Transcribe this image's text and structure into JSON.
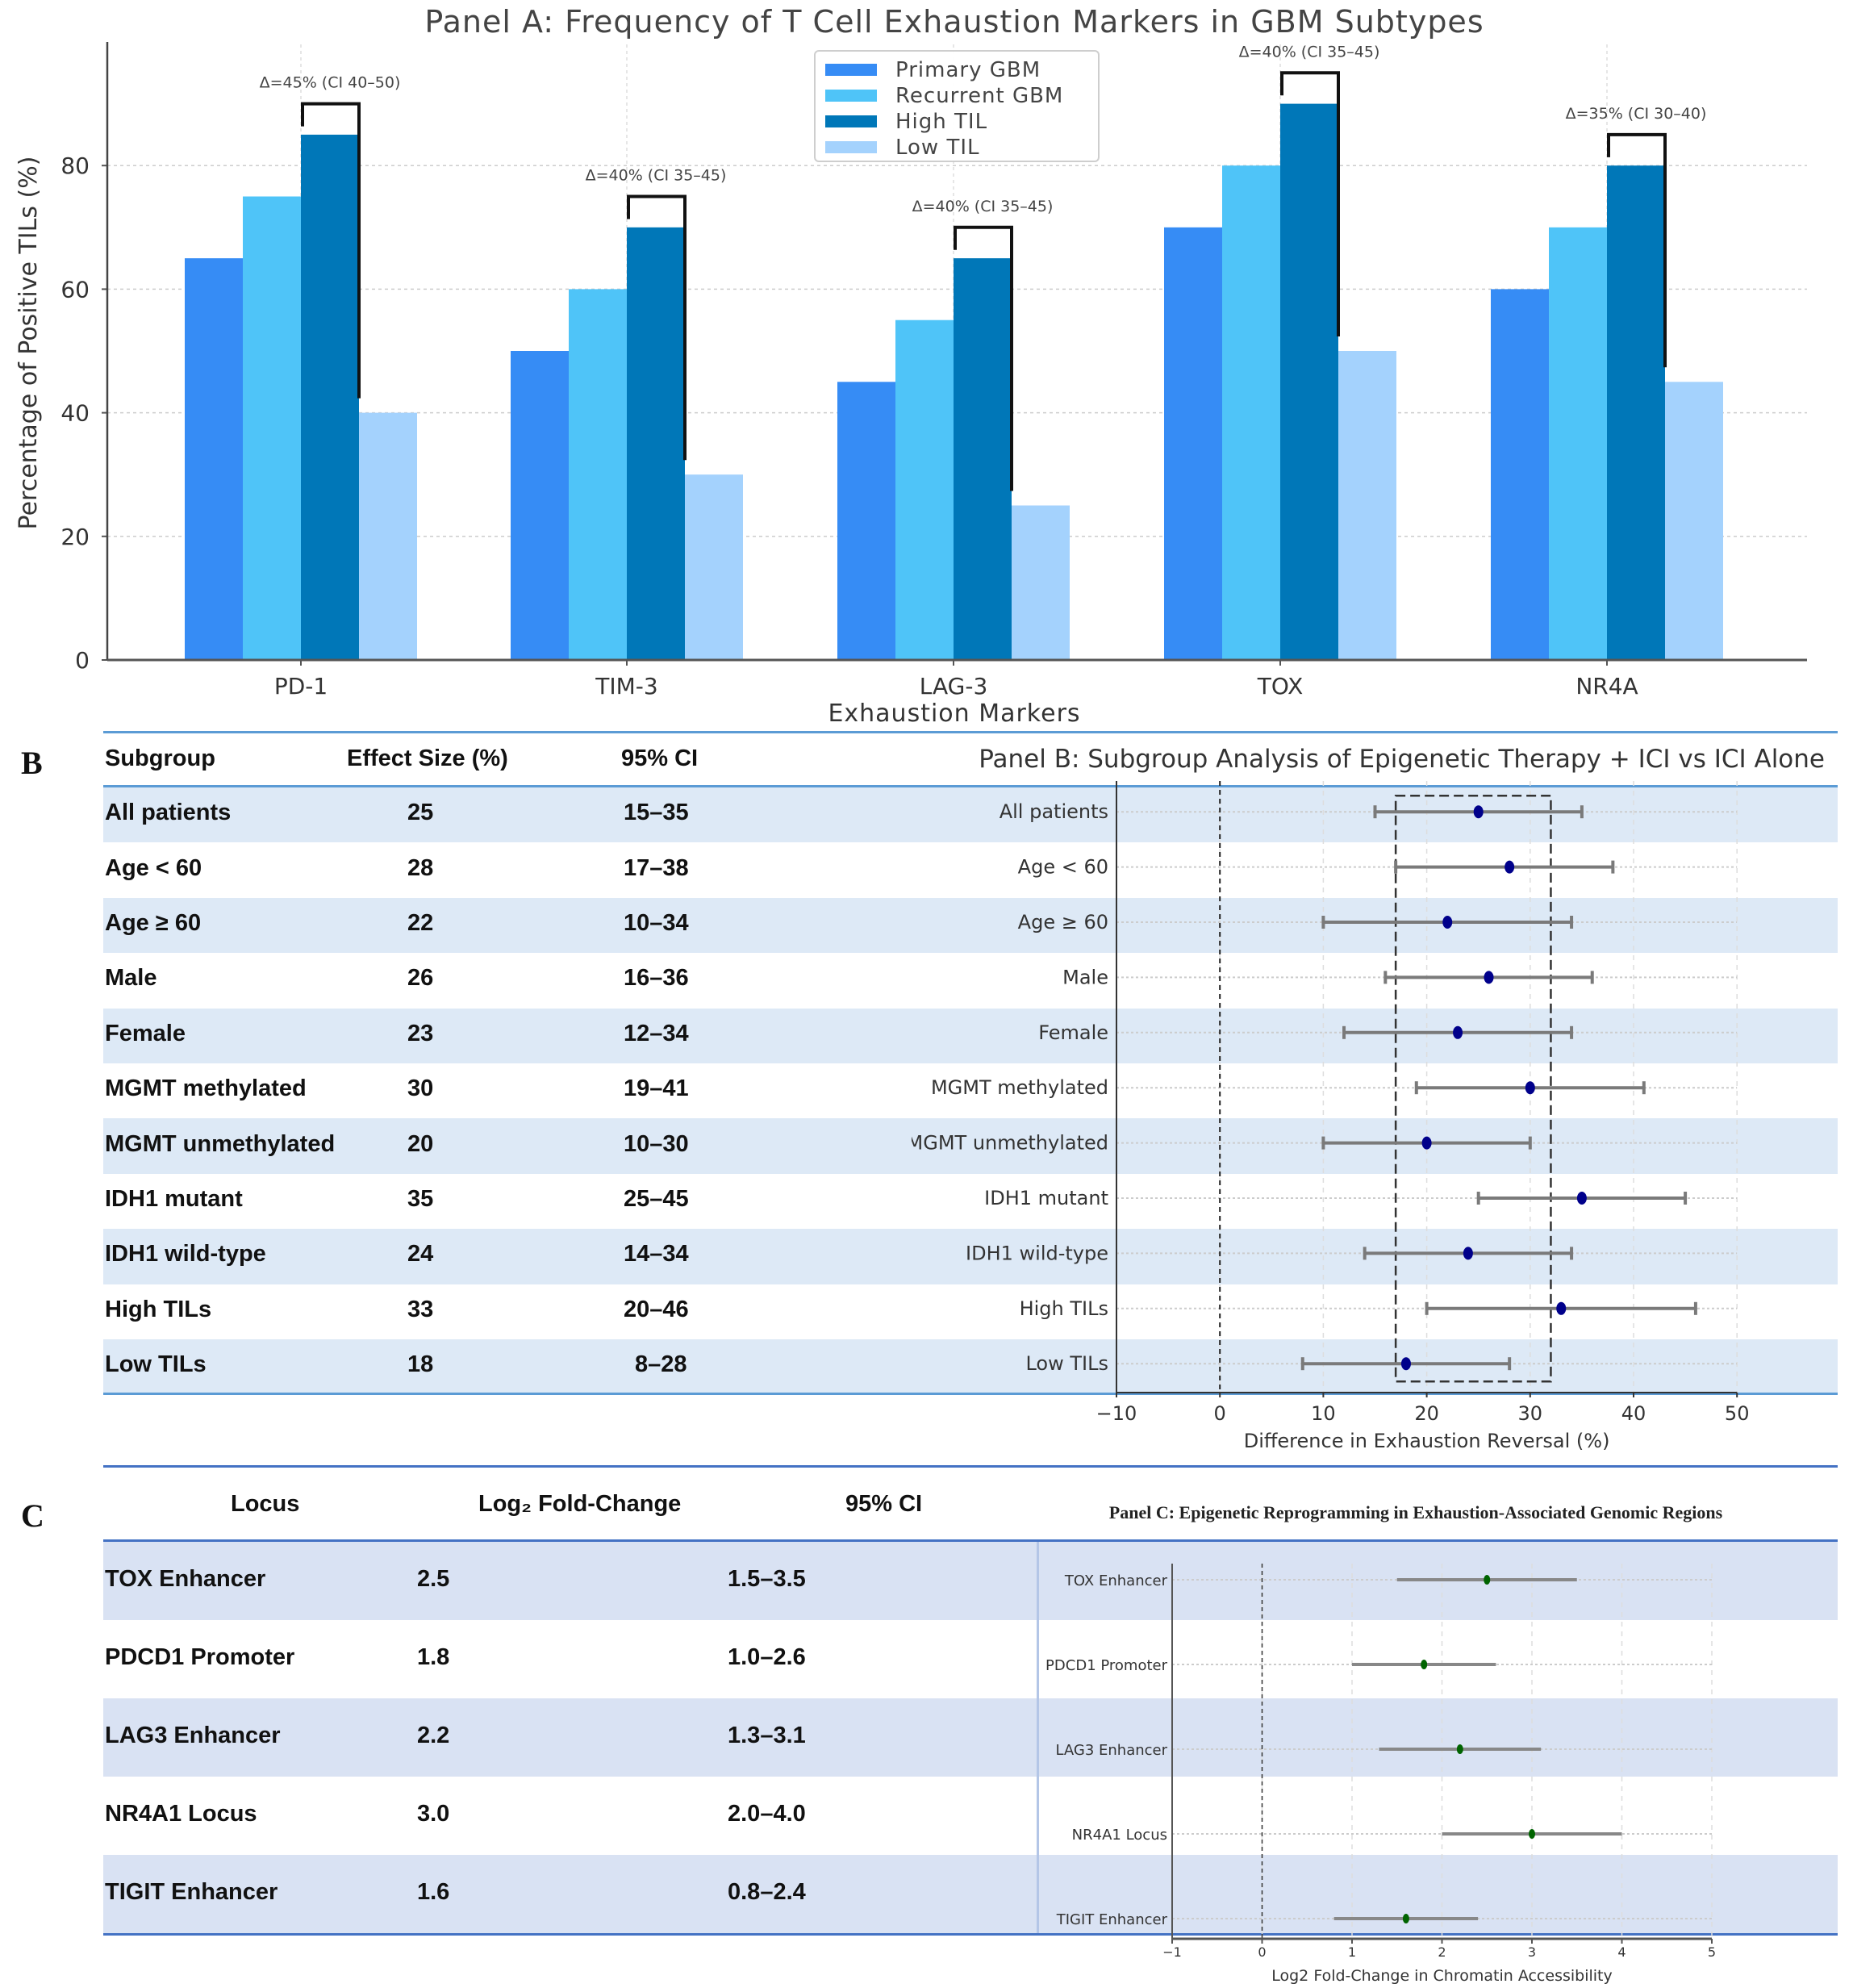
{
  "panel_a": {
    "letter": ""
  },
  "panel_b": {
    "letter": "B",
    "table": {
      "headers": [
        "Subgroup",
        "Effect Size (%)",
        "95% CI"
      ],
      "rows": [
        {
          "subgroup": "All patients",
          "effect": "25",
          "ci": "15–35"
        },
        {
          "subgroup": "Age < 60",
          "effect": "28",
          "ci": "17–38"
        },
        {
          "subgroup": "Age ≥ 60",
          "effect": "22",
          "ci": "10–34"
        },
        {
          "subgroup": "Male",
          "effect": "26",
          "ci": "16–36"
        },
        {
          "subgroup": "Female",
          "effect": "23",
          "ci": "12–34"
        },
        {
          "subgroup": "MGMT methylated",
          "effect": "30",
          "ci": "19–41"
        },
        {
          "subgroup": "MGMT unmethylated",
          "effect": "20",
          "ci": "10–30"
        },
        {
          "subgroup": "IDH1 mutant",
          "effect": "35",
          "ci": "25–45"
        },
        {
          "subgroup": "IDH1 wild-type",
          "effect": "24",
          "ci": "14–34"
        },
        {
          "subgroup": "High TILs",
          "effect": "33",
          "ci": "20–46"
        },
        {
          "subgroup": "Low TILs",
          "effect": "18",
          "ci": "8–28"
        }
      ]
    }
  },
  "panel_c": {
    "letter": "C",
    "table": {
      "headers": [
        "Locus",
        "Log₂ Fold-Change",
        "95% CI"
      ],
      "rows": [
        {
          "locus": "TOX Enhancer",
          "fc": "2.5",
          "ci": "1.5–3.5"
        },
        {
          "locus": "PDCD1 Promoter",
          "fc": "1.8",
          "ci": "1.0–2.6"
        },
        {
          "locus": "LAG3 Enhancer",
          "fc": "2.2",
          "ci": "1.3–3.1"
        },
        {
          "locus": "NR4A1 Locus",
          "fc": "3.0",
          "ci": "2.0–4.0"
        },
        {
          "locus": "TIGIT Enhancer",
          "fc": "1.6",
          "ci": "0.8–2.4"
        }
      ]
    }
  },
  "colors": {
    "primary_gbm": "#368cf5",
    "recurrent_gbm": "#4fc4f8",
    "high_til": "#0077b8",
    "low_til": "#a4d2fd",
    "row_band_b": "#dde9f6",
    "row_band_c": "#d9e2f3",
    "rule": "#4f8fd6",
    "point_b": "#00008b",
    "point_c": "#006400",
    "errorbar": "#7a7a7a"
  },
  "chart_data": [
    {
      "type": "bar",
      "title": "Panel A: Frequency of T Cell Exhaustion Markers in GBM Subtypes",
      "xlabel": "Exhaustion Markers",
      "ylabel": "Percentage of Positive TILs (%)",
      "ylim": [
        0,
        100
      ],
      "yticks": [
        0,
        20,
        40,
        60,
        80
      ],
      "grid": true,
      "legend_position": "top-center",
      "categories": [
        "PD-1",
        "TIM-3",
        "LAG-3",
        "TOX",
        "NR4A"
      ],
      "series": [
        {
          "name": "Primary GBM",
          "values": [
            65,
            50,
            45,
            70,
            60
          ]
        },
        {
          "name": "Recurrent GBM",
          "values": [
            75,
            60,
            55,
            80,
            70
          ]
        },
        {
          "name": "High TIL",
          "values": [
            85,
            70,
            65,
            90,
            80
          ]
        },
        {
          "name": "Low TIL",
          "values": [
            40,
            30,
            25,
            50,
            45
          ]
        }
      ],
      "annotations": [
        {
          "category": "PD-1",
          "text": "Δ=45% (CI 40–50)",
          "bracket_top": 90
        },
        {
          "category": "TIM-3",
          "text": "Δ=40% (CI 35–45)",
          "bracket_top": 75
        },
        {
          "category": "LAG-3",
          "text": "Δ=40% (CI 35–45)",
          "bracket_top": 70
        },
        {
          "category": "TOX",
          "text": "Δ=40% (CI 35–45)",
          "bracket_top": 95
        },
        {
          "category": "NR4A",
          "text": "Δ=35% (CI 30–40)",
          "bracket_top": 85
        }
      ]
    },
    {
      "type": "scatter",
      "subtype": "forest",
      "title": "Panel B: Subgroup Analysis of Epigenetic Therapy + ICI vs ICI Alone",
      "xlabel": "Difference in Exhaustion Reversal (%)",
      "xlim": [
        -10,
        50
      ],
      "xticks": [
        -10,
        0,
        10,
        20,
        30,
        40,
        50
      ],
      "xtick_labels": [
        "−10",
        "0",
        "10",
        "20",
        "30",
        "40",
        "50"
      ],
      "reference_line": 0,
      "highlight_band": [
        17,
        32
      ],
      "grid": true,
      "categories": [
        "All patients",
        "Age < 60",
        "Age ≥ 60",
        "Male",
        "Female",
        "MGMT methylated",
        "MGMT unmethylated",
        "IDH1 mutant",
        "IDH1 wild-type",
        "High TILs",
        "Low TILs"
      ],
      "estimates": [
        25,
        28,
        22,
        26,
        23,
        30,
        20,
        35,
        24,
        33,
        18
      ],
      "ci_low": [
        15,
        17,
        10,
        16,
        12,
        19,
        10,
        25,
        14,
        20,
        8
      ],
      "ci_high": [
        35,
        38,
        34,
        36,
        34,
        41,
        30,
        45,
        34,
        46,
        28
      ]
    },
    {
      "type": "scatter",
      "subtype": "forest",
      "title": "Panel C: Epigenetic Reprogramming in Exhaustion-Associated Genomic Regions",
      "xlabel": "Log2 Fold-Change in Chromatin Accessibility",
      "xlim": [
        -1,
        5
      ],
      "xticks": [
        -1,
        0,
        1,
        2,
        3,
        4,
        5
      ],
      "xtick_labels": [
        "−1",
        "0",
        "1",
        "2",
        "3",
        "4",
        "5"
      ],
      "reference_line": 0,
      "grid": true,
      "categories": [
        "TOX Enhancer",
        "PDCD1 Promoter",
        "LAG3 Enhancer",
        "NR4A1 Locus",
        "TIGIT Enhancer"
      ],
      "estimates": [
        2.5,
        1.8,
        2.2,
        3.0,
        1.6
      ],
      "ci_low": [
        1.5,
        1.0,
        1.3,
        2.0,
        0.8
      ],
      "ci_high": [
        3.5,
        2.6,
        3.1,
        4.0,
        2.4
      ]
    }
  ]
}
